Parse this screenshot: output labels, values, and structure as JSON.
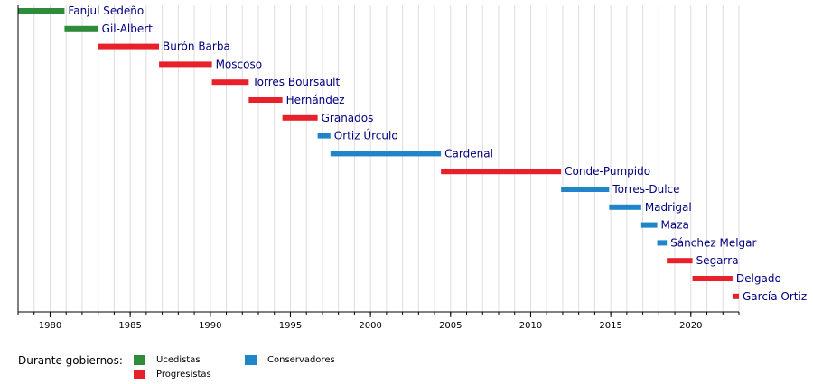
{
  "chart_data": {
    "type": "bar",
    "orientation": "horizontal-timeline",
    "title": "",
    "xlabel": "",
    "ylabel": "",
    "xlim": [
      1978,
      2023
    ],
    "x_ticks": [
      1980,
      1985,
      1990,
      1995,
      2000,
      2005,
      2010,
      2015,
      2020
    ],
    "grid": true,
    "legend_position": "bottom-left",
    "bars": [
      {
        "label": "Fanjul Sedeño",
        "start": 1978.0,
        "end": 1980.9,
        "group": "Ucedistas"
      },
      {
        "label": "Gil-Albert",
        "start": 1980.9,
        "end": 1983.0,
        "group": "Ucedistas"
      },
      {
        "label": "Burón Barba",
        "start": 1983.0,
        "end": 1986.8,
        "group": "Progresistas"
      },
      {
        "label": "Moscoso",
        "start": 1986.8,
        "end": 1990.1,
        "group": "Progresistas"
      },
      {
        "label": "Torres Boursault",
        "start": 1990.1,
        "end": 1992.4,
        "group": "Progresistas"
      },
      {
        "label": "Hernández",
        "start": 1992.4,
        "end": 1994.5,
        "group": "Progresistas"
      },
      {
        "label": "Granados",
        "start": 1994.5,
        "end": 1996.7,
        "group": "Progresistas"
      },
      {
        "label": "Ortiz Úrculo",
        "start": 1996.7,
        "end": 1997.5,
        "group": "Conservadores"
      },
      {
        "label": "Cardenal",
        "start": 1997.5,
        "end": 2004.4,
        "group": "Conservadores"
      },
      {
        "label": "Conde-Pumpido",
        "start": 2004.4,
        "end": 2011.9,
        "group": "Progresistas"
      },
      {
        "label": "Torres-Dulce",
        "start": 2011.9,
        "end": 2014.9,
        "group": "Conservadores"
      },
      {
        "label": "Madrigal",
        "start": 2014.9,
        "end": 2016.9,
        "group": "Conservadores"
      },
      {
        "label": "Maza",
        "start": 2016.9,
        "end": 2017.9,
        "group": "Conservadores"
      },
      {
        "label": "Sánchez Melgar",
        "start": 2017.9,
        "end": 2018.5,
        "group": "Conservadores"
      },
      {
        "label": "Segarra",
        "start": 2018.5,
        "end": 2020.1,
        "group": "Progresistas"
      },
      {
        "label": "Delgado",
        "start": 2020.1,
        "end": 2022.6,
        "group": "Progresistas"
      },
      {
        "label": "García Ortiz",
        "start": 2022.6,
        "end": 2023.0,
        "group": "Progresistas"
      }
    ],
    "colors": {
      "Ucedistas": "#2e8b3a",
      "Progresistas": "#e8202a",
      "Conservadores": "#1f85c8",
      "label_text": "#00007f",
      "grid": "#dddddd"
    }
  },
  "legend": {
    "title": "Durante gobiernos:",
    "items": [
      "Ucedistas",
      "Progresistas",
      "Conservadores"
    ]
  }
}
